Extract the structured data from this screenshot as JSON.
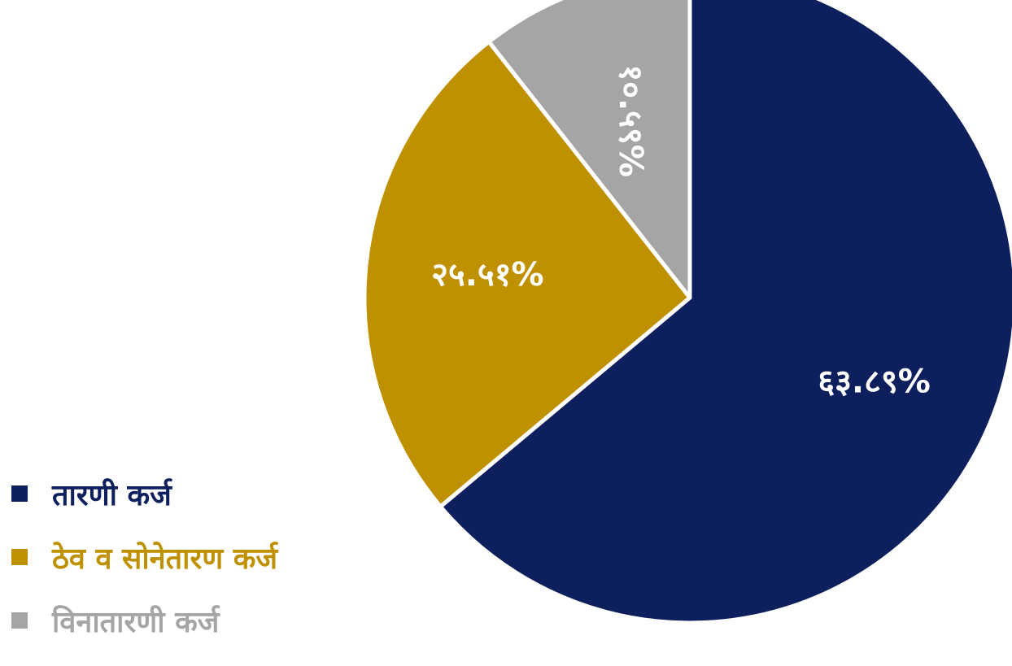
{
  "chart_data": {
    "type": "pie",
    "title": "",
    "slices": [
      {
        "name": "तारणी कर्ज",
        "label": "६३.८९%",
        "value": 63.89,
        "color": "#0d1f5c"
      },
      {
        "name": "ठेव व सोनेतारण कर्ज",
        "label": "२५.५१%",
        "value": 25.51,
        "color": "#bf9000"
      },
      {
        "name": "विनातारणी कर्ज",
        "label": "१०.५९%",
        "value": 10.59,
        "color": "#a5a5a5"
      }
    ],
    "legend_position": "bottom-left"
  }
}
